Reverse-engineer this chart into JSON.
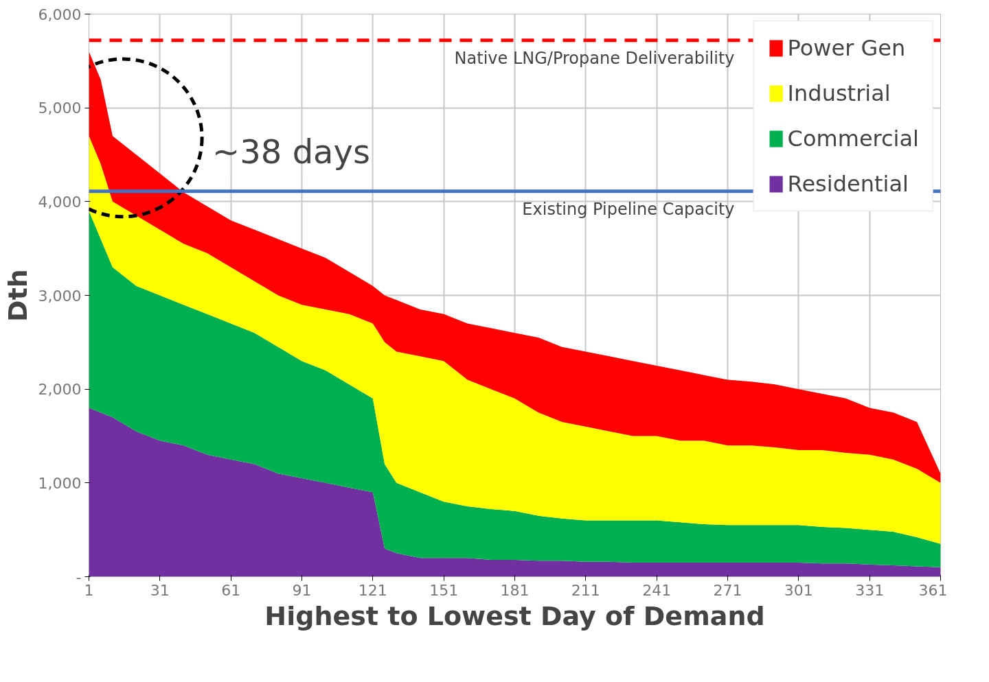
{
  "chart_data": {
    "type": "area",
    "stacked": true,
    "xlabel": "Highest to Lowest Day of Demand",
    "ylabel": "Dth",
    "x": [
      1,
      6,
      11,
      21,
      31,
      41,
      51,
      61,
      71,
      81,
      91,
      101,
      111,
      121,
      126,
      131,
      141,
      151,
      161,
      171,
      181,
      191,
      201,
      211,
      221,
      231,
      241,
      251,
      261,
      271,
      281,
      291,
      301,
      311,
      321,
      331,
      341,
      351,
      361
    ],
    "series": [
      {
        "name": "Residential",
        "color": "#7030a0",
        "values": [
          1800,
          1750,
          1700,
          1550,
          1450,
          1400,
          1300,
          1250,
          1200,
          1100,
          1050,
          1000,
          950,
          900,
          300,
          250,
          200,
          200,
          200,
          180,
          180,
          170,
          170,
          160,
          160,
          150,
          150,
          150,
          150,
          150,
          150,
          150,
          150,
          140,
          140,
          130,
          120,
          110,
          100
        ]
      },
      {
        "name": "Commercial",
        "color": "#00b050",
        "values": [
          2100,
          1850,
          1600,
          1550,
          1550,
          1500,
          1500,
          1450,
          1400,
          1350,
          1250,
          1200,
          1100,
          1000,
          900,
          750,
          700,
          600,
          550,
          540,
          520,
          480,
          450,
          440,
          440,
          450,
          450,
          430,
          410,
          400,
          400,
          400,
          400,
          390,
          380,
          370,
          360,
          310,
          250
        ]
      },
      {
        "name": "Industrial",
        "color": "#ffff00",
        "values": [
          800,
          800,
          700,
          750,
          700,
          650,
          650,
          600,
          550,
          550,
          600,
          650,
          750,
          800,
          1300,
          1400,
          1450,
          1500,
          1350,
          1280,
          1200,
          1100,
          1030,
          1000,
          950,
          900,
          900,
          870,
          890,
          850,
          850,
          830,
          800,
          820,
          800,
          800,
          770,
          730,
          650
        ]
      },
      {
        "name": "Power Gen",
        "color": "#ff0000",
        "values": [
          900,
          900,
          700,
          650,
          600,
          550,
          500,
          500,
          550,
          600,
          600,
          550,
          450,
          400,
          500,
          550,
          500,
          500,
          600,
          650,
          700,
          800,
          800,
          800,
          800,
          800,
          750,
          750,
          700,
          700,
          680,
          670,
          650,
          600,
          580,
          500,
          500,
          500,
          100
        ]
      }
    ],
    "xlim": [
      1,
      361
    ],
    "ylim": [
      0,
      6000
    ],
    "xticks": [
      1,
      31,
      61,
      91,
      121,
      151,
      181,
      211,
      241,
      271,
      301,
      331,
      361
    ],
    "yticks": [
      {
        "value": 0,
        "label": "-"
      },
      {
        "value": 1000,
        "label": "1,000"
      },
      {
        "value": 2000,
        "label": "2,000"
      },
      {
        "value": 3000,
        "label": "3,000"
      },
      {
        "value": 4000,
        "label": "4,000"
      },
      {
        "value": 5000,
        "label": "5,000"
      },
      {
        "value": 6000,
        "label": "6,000"
      }
    ],
    "grid": true,
    "legend": "top right",
    "ref_lines": [
      {
        "axis": "y",
        "value": 5720,
        "label": "Native LNG/Propane Deliverability",
        "color": "#ff0000",
        "line_style": "dashed"
      },
      {
        "axis": "y",
        "value": 4110,
        "label": "Existing Pipeline Capacity",
        "color": "#4472c4",
        "line_style": "solid"
      }
    ],
    "annotations": [
      "~38 days"
    ]
  }
}
